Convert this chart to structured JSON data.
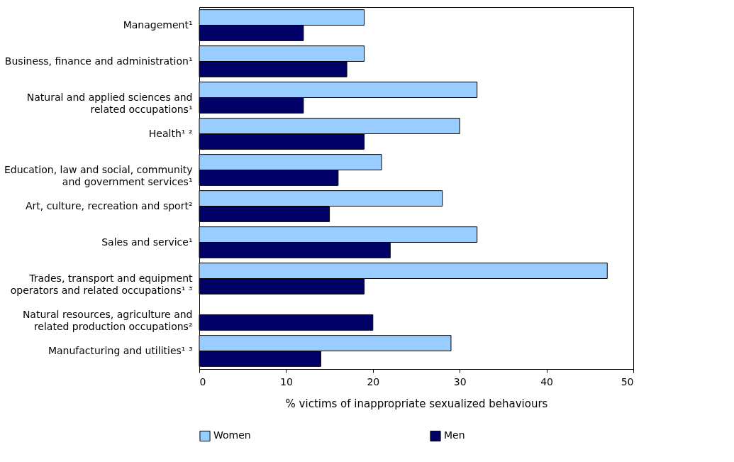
{
  "chart_data": {
    "type": "bar",
    "orientation": "horizontal",
    "categories": [
      "Management¹",
      "Business, finance and administration¹",
      "Natural and applied sciences and\nrelated occupations¹",
      "Health¹ ²",
      "Education, law and social, community\nand government services¹",
      "Art, culture, recreation and sport²",
      "Sales and service¹",
      "Trades, transport and equipment\noperators and related occupations¹ ³",
      "Natural resources, agriculture and\nrelated production occupations²",
      "Manufacturing and utilities¹ ³"
    ],
    "series": [
      {
        "name": "Women",
        "color": "#99ccff",
        "values": [
          19,
          19,
          32,
          30,
          21,
          28,
          32,
          47,
          null,
          29
        ]
      },
      {
        "name": "Men",
        "color": "#000066",
        "values": [
          12,
          17,
          12,
          19,
          16,
          15,
          22,
          19,
          20,
          14
        ]
      }
    ],
    "xlabel": "% victims of inappropriate sexualized behaviours",
    "xlim": [
      0,
      50
    ],
    "xticks": [
      0,
      10,
      20,
      30,
      40,
      50
    ],
    "grid": false,
    "legend": "bottom"
  }
}
